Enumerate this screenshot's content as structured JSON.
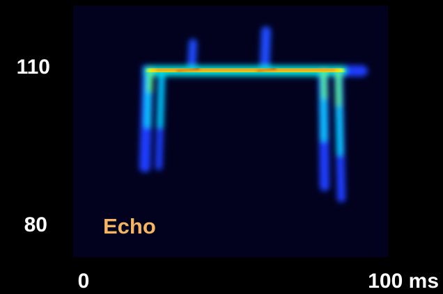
{
  "y_axis": {
    "labels": [
      "110",
      "80"
    ]
  },
  "x_axis": {
    "labels": [
      "0",
      "100 ms"
    ]
  },
  "annotation": "Echo"
}
